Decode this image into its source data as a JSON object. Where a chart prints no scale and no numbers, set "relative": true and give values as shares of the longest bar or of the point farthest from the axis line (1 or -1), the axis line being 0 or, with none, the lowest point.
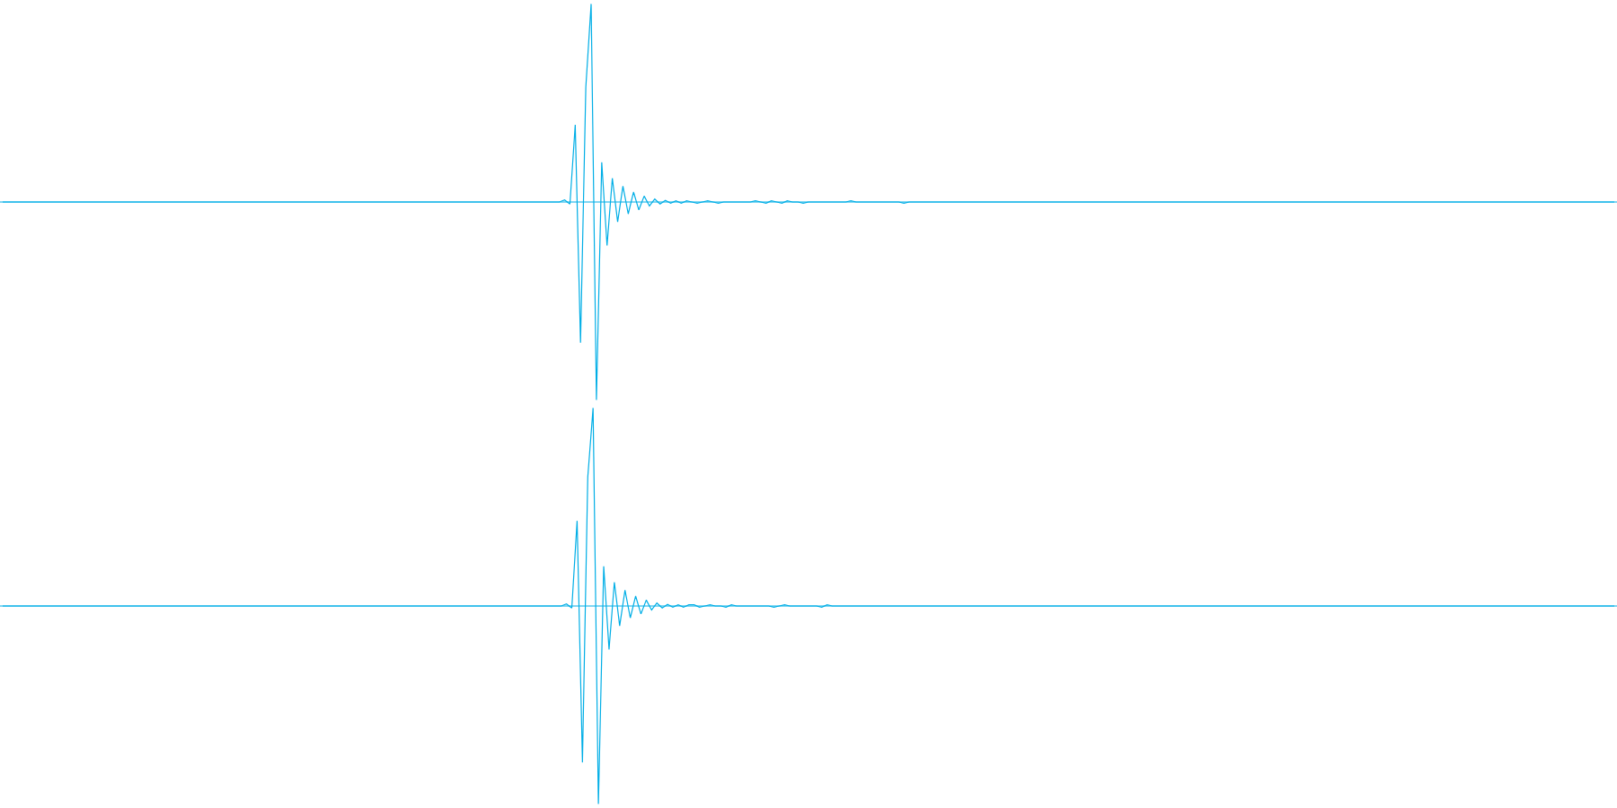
{
  "chart_data": [
    {
      "type": "line",
      "relative": true,
      "ref_lines": [
        {
          "axis": "y",
          "value": 0,
          "color": "#00aee6"
        }
      ],
      "categories": [
        null,
        null,
        null,
        null,
        null,
        null,
        null,
        null,
        null,
        null,
        null,
        null,
        null,
        null,
        null,
        null,
        null,
        null,
        null,
        null,
        null,
        null,
        null,
        null,
        null,
        null,
        null,
        null,
        null,
        null,
        null,
        null,
        null,
        null,
        null,
        null,
        null,
        null,
        null,
        null,
        null,
        null,
        null,
        null,
        null,
        null,
        null,
        null,
        null,
        null,
        null,
        null,
        null,
        null,
        null,
        null,
        null,
        null,
        null,
        null,
        null,
        null,
        null,
        null,
        null,
        null,
        null,
        null,
        null,
        null,
        null,
        null,
        null,
        null,
        null,
        null,
        null,
        null,
        null,
        null,
        null,
        null,
        null,
        null,
        null,
        null,
        null,
        null,
        null,
        null,
        null,
        null,
        null,
        null,
        null,
        null,
        null,
        null,
        null,
        null,
        null,
        null,
        null,
        null,
        null,
        null,
        null,
        null,
        null,
        null,
        null,
        null,
        null,
        null,
        null,
        null,
        null,
        null,
        null,
        null,
        null,
        null,
        null,
        null,
        null,
        null,
        null,
        null,
        null,
        null,
        null,
        null,
        null,
        null,
        null,
        null,
        null,
        null,
        null,
        null,
        null,
        null,
        null,
        null,
        null,
        null,
        null,
        null,
        null,
        null,
        null,
        null,
        null,
        null,
        null,
        null,
        null,
        null,
        null,
        null,
        null,
        null,
        null,
        null,
        null,
        null,
        null,
        null,
        null,
        null,
        null,
        null,
        null,
        null,
        null,
        null,
        null,
        null,
        null,
        null,
        null,
        null,
        null,
        null,
        null,
        null,
        null,
        null,
        null,
        null,
        null,
        null,
        null,
        null,
        null,
        null,
        null,
        null,
        null,
        null,
        null,
        null,
        null,
        null,
        null,
        null,
        null,
        null,
        null,
        null,
        null,
        null,
        null,
        null,
        null,
        null,
        null,
        null,
        null,
        null,
        null,
        null,
        null,
        null,
        null,
        null,
        null,
        null,
        null,
        null,
        null,
        null,
        null,
        null,
        null,
        null,
        null,
        null,
        null,
        null,
        null,
        null,
        null,
        null,
        null,
        null,
        null,
        null,
        null,
        null,
        null,
        null,
        null,
        null,
        null,
        null,
        null,
        null,
        null,
        null,
        null,
        null,
        null,
        null,
        null,
        null,
        null,
        null,
        null,
        null,
        null,
        null,
        null,
        null,
        null,
        null,
        null,
        null,
        null,
        null,
        null,
        null,
        null,
        null,
        null,
        null,
        null,
        null,
        null,
        null,
        null,
        null,
        null,
        null,
        null,
        null,
        null,
        null,
        null,
        null,
        null,
        null,
        null,
        null,
        null
      ],
      "series": [
        {
          "color": "#00aee6",
          "values": [
            0,
            0,
            0,
            0,
            0,
            0,
            0,
            0,
            0,
            0,
            0,
            0,
            0,
            0,
            0,
            0,
            0,
            0,
            0,
            0,
            0,
            0,
            0,
            0,
            0,
            0,
            0,
            0,
            0,
            0,
            0,
            0,
            0,
            0,
            0,
            0,
            0,
            0,
            0,
            0,
            0,
            0,
            0,
            0,
            0,
            0,
            0,
            0,
            0,
            0,
            0,
            0,
            0,
            0,
            0,
            0,
            0,
            0,
            0,
            0,
            0,
            0,
            0,
            0,
            0,
            0,
            0,
            0,
            0,
            0,
            0,
            0,
            0,
            0,
            0,
            0,
            0,
            0,
            0,
            0,
            0,
            0,
            0,
            0,
            0,
            0,
            0,
            0,
            0,
            0,
            0,
            0,
            0,
            0,
            0,
            0,
            0,
            0,
            0,
            0,
            0,
            0,
            0,
            0,
            0,
            0,
            0.01,
            -0.01,
            0.39,
            -0.71,
            0.58,
            1.0,
            -1.0,
            0.2,
            -0.22,
            0.12,
            -0.1,
            0.08,
            -0.06,
            0.05,
            -0.04,
            0.03,
            -0.02,
            0.015,
            -0.01,
            0.008,
            -0.006,
            0.006,
            -0.006,
            0.006,
            0,
            -0.006,
            0,
            0.006,
            0,
            -0.006,
            0,
            0,
            0,
            0,
            0,
            0,
            0.006,
            0,
            -0.006,
            0.006,
            0,
            -0.006,
            0.006,
            0,
            0,
            -0.006,
            0,
            0,
            0,
            0,
            0,
            0,
            0,
            0,
            0.006,
            0,
            0,
            0,
            0,
            0,
            0,
            0,
            0,
            0,
            -0.006,
            0,
            0,
            0,
            0,
            0,
            0,
            0,
            0,
            0,
            0,
            0,
            0,
            0,
            0,
            0,
            0,
            0,
            0,
            0,
            0,
            0,
            0,
            0,
            0,
            0,
            0,
            0,
            0,
            0,
            0,
            0,
            0,
            0,
            0,
            0,
            0,
            0,
            0,
            0,
            0,
            0,
            0,
            0,
            0,
            0,
            0,
            0,
            0,
            0,
            0,
            0,
            0,
            0,
            0,
            0,
            0,
            0,
            0,
            0,
            0,
            0,
            0,
            0,
            0,
            0,
            0,
            0,
            0,
            0,
            0,
            0,
            0,
            0,
            0,
            0,
            0,
            0,
            0,
            0,
            0,
            0,
            0,
            0,
            0,
            0,
            0,
            0,
            0,
            0,
            0,
            0,
            0,
            0,
            0,
            0,
            0,
            0,
            0,
            0,
            0,
            0,
            0,
            0,
            0,
            0,
            0,
            0,
            0,
            0,
            0,
            0,
            0,
            0,
            0,
            0,
            0,
            0,
            0,
            0,
            0,
            0,
            0,
            0,
            0,
            0,
            0,
            0,
            0,
            0,
            0,
            0,
            0,
            0,
            0
          ]
        }
      ]
    },
    {
      "type": "line",
      "relative": true,
      "ref_lines": [
        {
          "axis": "y",
          "value": 0,
          "color": "#00aee6"
        }
      ],
      "categories": [
        null,
        null,
        null,
        null,
        null,
        null,
        null,
        null,
        null,
        null,
        null,
        null,
        null,
        null,
        null,
        null,
        null,
        null,
        null,
        null,
        null,
        null,
        null,
        null,
        null,
        null,
        null,
        null,
        null,
        null,
        null,
        null,
        null,
        null,
        null,
        null,
        null,
        null,
        null,
        null,
        null,
        null,
        null,
        null,
        null,
        null,
        null,
        null,
        null,
        null,
        null,
        null,
        null,
        null,
        null,
        null,
        null,
        null,
        null,
        null,
        null,
        null,
        null,
        null,
        null,
        null,
        null,
        null,
        null,
        null,
        null,
        null,
        null,
        null,
        null,
        null,
        null,
        null,
        null,
        null,
        null,
        null,
        null,
        null,
        null,
        null,
        null,
        null,
        null,
        null,
        null,
        null,
        null,
        null,
        null,
        null,
        null,
        null,
        null,
        null,
        null,
        null,
        null,
        null,
        null,
        null,
        null,
        null,
        null,
        null,
        null,
        null,
        null,
        null,
        null,
        null,
        null,
        null,
        null,
        null,
        null,
        null,
        null,
        null,
        null,
        null,
        null,
        null,
        null,
        null,
        null,
        null,
        null,
        null,
        null,
        null,
        null,
        null,
        null,
        null,
        null,
        null,
        null,
        null,
        null,
        null,
        null,
        null,
        null,
        null,
        null,
        null,
        null,
        null,
        null,
        null,
        null,
        null,
        null,
        null,
        null,
        null,
        null,
        null,
        null,
        null,
        null,
        null,
        null,
        null,
        null,
        null,
        null,
        null,
        null,
        null,
        null,
        null,
        null,
        null,
        null,
        null,
        null,
        null,
        null,
        null,
        null,
        null,
        null,
        null,
        null,
        null,
        null,
        null,
        null,
        null,
        null,
        null,
        null,
        null,
        null,
        null,
        null,
        null,
        null,
        null,
        null,
        null,
        null,
        null,
        null,
        null,
        null,
        null,
        null,
        null,
        null,
        null,
        null,
        null,
        null,
        null,
        null,
        null,
        null,
        null,
        null,
        null,
        null,
        null,
        null,
        null,
        null,
        null,
        null,
        null,
        null,
        null,
        null,
        null,
        null,
        null,
        null,
        null,
        null,
        null,
        null,
        null,
        null,
        null,
        null,
        null,
        null,
        null,
        null,
        null,
        null,
        null,
        null,
        null,
        null,
        null,
        null,
        null,
        null,
        null,
        null,
        null,
        null,
        null,
        null,
        null,
        null,
        null,
        null,
        null,
        null,
        null,
        null,
        null,
        null,
        null,
        null,
        null,
        null,
        null,
        null,
        null,
        null,
        null,
        null,
        null,
        null,
        null,
        null,
        null,
        null,
        null,
        null,
        null,
        null,
        null,
        null,
        null
      ],
      "series": [
        {
          "color": "#00aee6",
          "values": [
            0,
            0,
            0,
            0,
            0,
            0,
            0,
            0,
            0,
            0,
            0,
            0,
            0,
            0,
            0,
            0,
            0,
            0,
            0,
            0,
            0,
            0,
            0,
            0,
            0,
            0,
            0,
            0,
            0,
            0,
            0,
            0,
            0,
            0,
            0,
            0,
            0,
            0,
            0,
            0,
            0,
            0,
            0,
            0,
            0,
            0,
            0,
            0,
            0,
            0,
            0,
            0,
            0,
            0,
            0,
            0,
            0,
            0,
            0,
            0,
            0,
            0,
            0,
            0,
            0,
            0,
            0,
            0,
            0,
            0,
            0,
            0,
            0,
            0,
            0,
            0,
            0,
            0,
            0,
            0,
            0,
            0,
            0,
            0,
            0,
            0,
            0,
            0,
            0,
            0,
            0,
            0,
            0,
            0,
            0,
            0,
            0,
            0,
            0,
            0,
            0,
            0,
            0,
            0,
            0,
            0,
            0.01,
            -0.01,
            0.43,
            -0.79,
            0.65,
            1.0,
            -1.0,
            0.2,
            -0.22,
            0.12,
            -0.1,
            0.08,
            -0.06,
            0.05,
            -0.04,
            0.03,
            -0.02,
            0.015,
            -0.01,
            0.008,
            -0.006,
            0.006,
            -0.006,
            0.006,
            0.006,
            -0.006,
            0,
            0.006,
            0,
            0,
            -0.006,
            0.006,
            0,
            0,
            0,
            0,
            0,
            0,
            0,
            -0.006,
            0,
            0.006,
            0,
            0,
            0,
            0,
            0,
            0,
            -0.006,
            0.006,
            0,
            0,
            0,
            0,
            0,
            0,
            0,
            0,
            0,
            0,
            0,
            0,
            0,
            0,
            0,
            0,
            0,
            0,
            0,
            0,
            0,
            0,
            0,
            0,
            0,
            0,
            0,
            0,
            0,
            0,
            0,
            0,
            0,
            0,
            0,
            0,
            0,
            0,
            0,
            0,
            0,
            0,
            0,
            0,
            0,
            0,
            0,
            0,
            0,
            0,
            0,
            0,
            0,
            0,
            0,
            0,
            0,
            0,
            0,
            0,
            0,
            0,
            0,
            0,
            0,
            0,
            0,
            0,
            0,
            0,
            0,
            0,
            0,
            0,
            0,
            0,
            0,
            0,
            0,
            0,
            0,
            0,
            0,
            0,
            0,
            0,
            0,
            0,
            0,
            0,
            0,
            0,
            0,
            0,
            0,
            0,
            0,
            0,
            0,
            0,
            0,
            0,
            0,
            0,
            0,
            0,
            0,
            0,
            0,
            0,
            0,
            0,
            0,
            0,
            0,
            0,
            0,
            0,
            0,
            0,
            0,
            0,
            0,
            0,
            0,
            0,
            0,
            0,
            0,
            0,
            0,
            0,
            0,
            0,
            0,
            0,
            0,
            0,
            0,
            0,
            0,
            0,
            0,
            0,
            0,
            0,
            0,
            0
          ]
        }
      ]
    }
  ]
}
